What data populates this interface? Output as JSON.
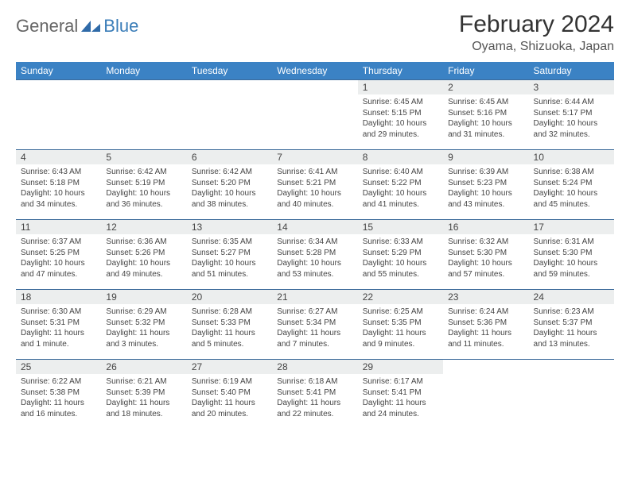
{
  "logo": {
    "text1": "General",
    "text2": "Blue"
  },
  "title": "February 2024",
  "location": "Oyama, Shizuoka, Japan",
  "colors": {
    "header_bg": "#3b82c4",
    "header_text": "#ffffff",
    "daynum_bg": "#eceeee",
    "border": "#3b6a9a",
    "logo_blue": "#3a7db8"
  },
  "weekdays": [
    "Sunday",
    "Monday",
    "Tuesday",
    "Wednesday",
    "Thursday",
    "Friday",
    "Saturday"
  ],
  "weeks": [
    [
      null,
      null,
      null,
      null,
      {
        "n": "1",
        "sr": "Sunrise: 6:45 AM",
        "ss": "Sunset: 5:15 PM",
        "dl": "Daylight: 10 hours and 29 minutes."
      },
      {
        "n": "2",
        "sr": "Sunrise: 6:45 AM",
        "ss": "Sunset: 5:16 PM",
        "dl": "Daylight: 10 hours and 31 minutes."
      },
      {
        "n": "3",
        "sr": "Sunrise: 6:44 AM",
        "ss": "Sunset: 5:17 PM",
        "dl": "Daylight: 10 hours and 32 minutes."
      }
    ],
    [
      {
        "n": "4",
        "sr": "Sunrise: 6:43 AM",
        "ss": "Sunset: 5:18 PM",
        "dl": "Daylight: 10 hours and 34 minutes."
      },
      {
        "n": "5",
        "sr": "Sunrise: 6:42 AM",
        "ss": "Sunset: 5:19 PM",
        "dl": "Daylight: 10 hours and 36 minutes."
      },
      {
        "n": "6",
        "sr": "Sunrise: 6:42 AM",
        "ss": "Sunset: 5:20 PM",
        "dl": "Daylight: 10 hours and 38 minutes."
      },
      {
        "n": "7",
        "sr": "Sunrise: 6:41 AM",
        "ss": "Sunset: 5:21 PM",
        "dl": "Daylight: 10 hours and 40 minutes."
      },
      {
        "n": "8",
        "sr": "Sunrise: 6:40 AM",
        "ss": "Sunset: 5:22 PM",
        "dl": "Daylight: 10 hours and 41 minutes."
      },
      {
        "n": "9",
        "sr": "Sunrise: 6:39 AM",
        "ss": "Sunset: 5:23 PM",
        "dl": "Daylight: 10 hours and 43 minutes."
      },
      {
        "n": "10",
        "sr": "Sunrise: 6:38 AM",
        "ss": "Sunset: 5:24 PM",
        "dl": "Daylight: 10 hours and 45 minutes."
      }
    ],
    [
      {
        "n": "11",
        "sr": "Sunrise: 6:37 AM",
        "ss": "Sunset: 5:25 PM",
        "dl": "Daylight: 10 hours and 47 minutes."
      },
      {
        "n": "12",
        "sr": "Sunrise: 6:36 AM",
        "ss": "Sunset: 5:26 PM",
        "dl": "Daylight: 10 hours and 49 minutes."
      },
      {
        "n": "13",
        "sr": "Sunrise: 6:35 AM",
        "ss": "Sunset: 5:27 PM",
        "dl": "Daylight: 10 hours and 51 minutes."
      },
      {
        "n": "14",
        "sr": "Sunrise: 6:34 AM",
        "ss": "Sunset: 5:28 PM",
        "dl": "Daylight: 10 hours and 53 minutes."
      },
      {
        "n": "15",
        "sr": "Sunrise: 6:33 AM",
        "ss": "Sunset: 5:29 PM",
        "dl": "Daylight: 10 hours and 55 minutes."
      },
      {
        "n": "16",
        "sr": "Sunrise: 6:32 AM",
        "ss": "Sunset: 5:30 PM",
        "dl": "Daylight: 10 hours and 57 minutes."
      },
      {
        "n": "17",
        "sr": "Sunrise: 6:31 AM",
        "ss": "Sunset: 5:30 PM",
        "dl": "Daylight: 10 hours and 59 minutes."
      }
    ],
    [
      {
        "n": "18",
        "sr": "Sunrise: 6:30 AM",
        "ss": "Sunset: 5:31 PM",
        "dl": "Daylight: 11 hours and 1 minute."
      },
      {
        "n": "19",
        "sr": "Sunrise: 6:29 AM",
        "ss": "Sunset: 5:32 PM",
        "dl": "Daylight: 11 hours and 3 minutes."
      },
      {
        "n": "20",
        "sr": "Sunrise: 6:28 AM",
        "ss": "Sunset: 5:33 PM",
        "dl": "Daylight: 11 hours and 5 minutes."
      },
      {
        "n": "21",
        "sr": "Sunrise: 6:27 AM",
        "ss": "Sunset: 5:34 PM",
        "dl": "Daylight: 11 hours and 7 minutes."
      },
      {
        "n": "22",
        "sr": "Sunrise: 6:25 AM",
        "ss": "Sunset: 5:35 PM",
        "dl": "Daylight: 11 hours and 9 minutes."
      },
      {
        "n": "23",
        "sr": "Sunrise: 6:24 AM",
        "ss": "Sunset: 5:36 PM",
        "dl": "Daylight: 11 hours and 11 minutes."
      },
      {
        "n": "24",
        "sr": "Sunrise: 6:23 AM",
        "ss": "Sunset: 5:37 PM",
        "dl": "Daylight: 11 hours and 13 minutes."
      }
    ],
    [
      {
        "n": "25",
        "sr": "Sunrise: 6:22 AM",
        "ss": "Sunset: 5:38 PM",
        "dl": "Daylight: 11 hours and 16 minutes."
      },
      {
        "n": "26",
        "sr": "Sunrise: 6:21 AM",
        "ss": "Sunset: 5:39 PM",
        "dl": "Daylight: 11 hours and 18 minutes."
      },
      {
        "n": "27",
        "sr": "Sunrise: 6:19 AM",
        "ss": "Sunset: 5:40 PM",
        "dl": "Daylight: 11 hours and 20 minutes."
      },
      {
        "n": "28",
        "sr": "Sunrise: 6:18 AM",
        "ss": "Sunset: 5:41 PM",
        "dl": "Daylight: 11 hours and 22 minutes."
      },
      {
        "n": "29",
        "sr": "Sunrise: 6:17 AM",
        "ss": "Sunset: 5:41 PM",
        "dl": "Daylight: 11 hours and 24 minutes."
      },
      null,
      null
    ]
  ]
}
